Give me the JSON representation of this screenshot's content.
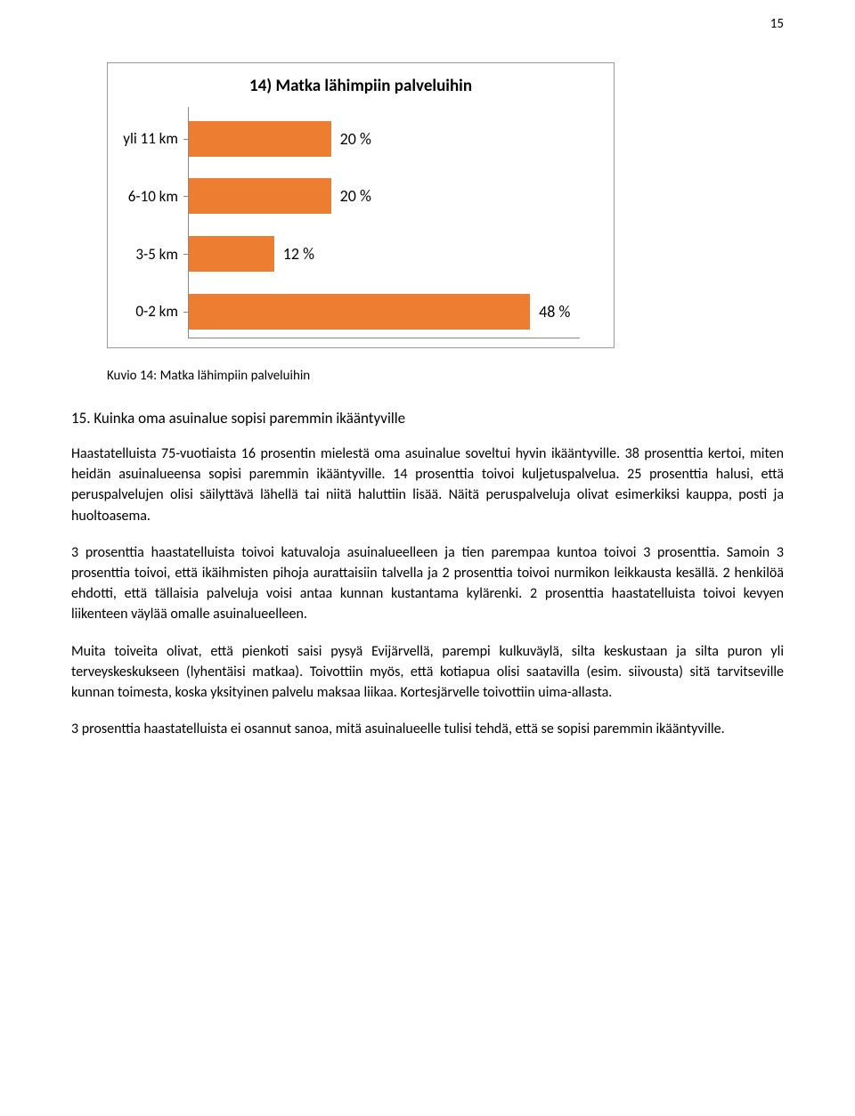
{
  "page_number": "15",
  "chart": {
    "type": "bar-horizontal",
    "title": "14) Matka lähimpiin palveluihin",
    "bar_color": "#ed7d31",
    "border_color": "#888888",
    "background": "#ffffff",
    "title_fontsize": 19,
    "label_fontsize": 17,
    "value_fontsize": 18,
    "plot_height_pct": 100,
    "max_value": 55,
    "rows": [
      {
        "label": "yli 11 km",
        "value": 20,
        "value_label": "20 %",
        "top_pct": 6
      },
      {
        "label": "6-10 km",
        "value": 20,
        "value_label": "20 %",
        "top_pct": 31
      },
      {
        "label": "3-5 km",
        "value": 12,
        "value_label": "12 %",
        "top_pct": 56
      },
      {
        "label": "0-2 km",
        "value": 48,
        "value_label": "48 %",
        "top_pct": 81
      }
    ]
  },
  "caption": "Kuvio 14: Matka lähimpiin palveluihin",
  "section_heading": "15. Kuinka oma asuinalue sopisi paremmin ikääntyville",
  "paragraphs": {
    "p1": "Haastatelluista 75-vuotiaista 16 prosentin mielestä oma asuinalue soveltui hyvin ikääntyville. 38 prosenttia kertoi, miten heidän asuinalueensa sopisi paremmin ikääntyville. 14 prosenttia toivoi kuljetuspalvelua. 25 prosenttia halusi, että peruspalvelujen olisi säilyttävä lähellä tai niitä haluttiin lisää. Näitä peruspalveluja olivat esimerkiksi kauppa, posti ja huoltoasema.",
    "p2": "3 prosenttia haastatelluista toivoi katuvaloja asuinalueelleen ja tien parempaa kuntoa toivoi 3 prosenttia. Samoin 3 prosenttia toivoi, että ikäihmisten pihoja aurattaisiin talvella ja 2 prosenttia toivoi nurmikon leikkausta kesällä. 2 henkilöä ehdotti, että tällaisia palveluja voisi antaa kunnan kustantama kylärenki. 2 prosenttia haastatelluista toivoi kevyen liikenteen väylää omalle asuinalueelleen.",
    "p3": "Muita toiveita olivat, että pienkoti saisi pysyä Evijärvellä, parempi kulkuväylä, silta keskustaan ja silta puron yli terveyskeskukseen (lyhentäisi matkaa). Toivottiin myös, että kotiapua olisi saatavilla (esim. siivousta) sitä tarvitseville kunnan toimesta, koska yksityinen palvelu maksaa liikaa. Kortesjärvelle toivottiin uima-allasta.",
    "p4": "3 prosenttia haastatelluista ei osannut sanoa, mitä asuinalueelle tulisi tehdä, että se sopisi paremmin ikääntyville."
  }
}
